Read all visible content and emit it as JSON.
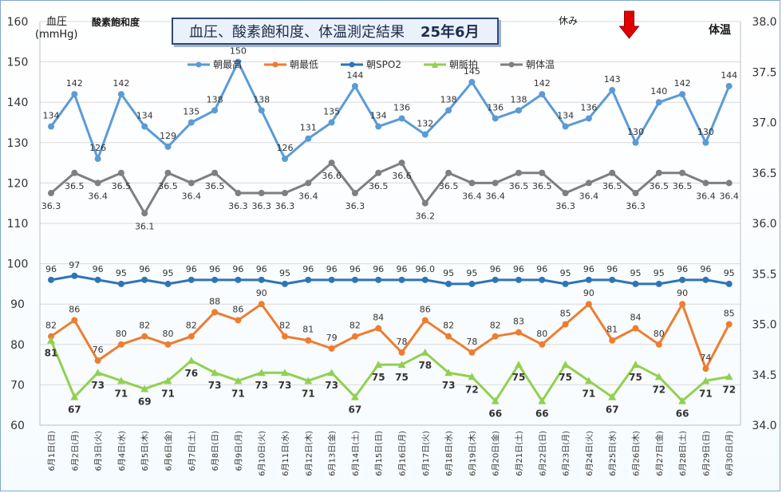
{
  "header": {
    "title": "血圧、酸素飽和度、体温測定結果",
    "month": "25年6月",
    "left_label_line1": "血圧",
    "left_label_line2": "(mmHg)",
    "spo2_label": "酸素飽和度",
    "rest_label": "休み",
    "right_label": "体温"
  },
  "colors": {
    "systolic": "#5b9bd5",
    "diastolic": "#ed7d31",
    "spo2": "#2e75b6",
    "pulse": "#92d050",
    "temp": "#7f7f7f",
    "arrow": "#e00000"
  },
  "chart_data": {
    "type": "line",
    "title": "血圧、酸素飽和度、体温測定結果 25年6月",
    "categories": [
      "6月1日(日)",
      "6月2日(月)",
      "6月3日(火)",
      "6月4日(水)",
      "6月5日(木)",
      "6月6日(金)",
      "6月7日(土)",
      "6月8日(日)",
      "6月9日(月)",
      "6月10日(火)",
      "6月11日(水)",
      "6月12日(木)",
      "6月13日(金)",
      "6月14日(土)",
      "6月15日(日)",
      "6月16日(月)",
      "6月17日(火)",
      "6月18日(水)",
      "6月19日(木)",
      "6月20日(金)",
      "6月21日(土)",
      "6月22日(日)",
      "6月23日(月)",
      "6月24日(火)",
      "6月25日(水)",
      "6月26日(木)",
      "6月27日(金)",
      "6月28日(土)",
      "6月29日(日)",
      "6月30日(月)"
    ],
    "left_axis": {
      "label": "血圧 (mmHg)",
      "min": 60,
      "max": 160,
      "step": 10
    },
    "right_axis": {
      "label": "体温",
      "min": 34.0,
      "max": 38.0,
      "step": 0.5
    },
    "rest_marker_index": 25,
    "series": [
      {
        "name": "朝最高",
        "axis": "left",
        "marker": "circle",
        "values": [
          134,
          142,
          126,
          142,
          134,
          129,
          135,
          138,
          150,
          138,
          126,
          131,
          135,
          144,
          134,
          136,
          132,
          138,
          145,
          136,
          138,
          142,
          134,
          136,
          143,
          130,
          140,
          142,
          130,
          144
        ],
        "labels": [
          "134",
          "142",
          "126",
          "142",
          "134",
          "129",
          "135",
          "138",
          "150",
          "138",
          "126",
          "131",
          "135",
          "144",
          "134",
          "136",
          "132",
          "138",
          "145",
          "136",
          "138",
          "142",
          "134",
          "136",
          "143",
          "130",
          "140",
          "142",
          "130",
          "144"
        ]
      },
      {
        "name": "朝最低",
        "axis": "left",
        "marker": "circle",
        "values": [
          82,
          86,
          76,
          80,
          82,
          80,
          82,
          88,
          86,
          90,
          82,
          81,
          79,
          82,
          84,
          78,
          86,
          82,
          78,
          82,
          83,
          80,
          85,
          90,
          81,
          84,
          80,
          90,
          74,
          85
        ],
        "labels": [
          "82",
          "86",
          "76",
          "80",
          "82",
          "80",
          "82",
          "88",
          "86",
          "90",
          "82",
          "81",
          "79",
          "82",
          "84",
          "78",
          "86",
          "82",
          "78",
          "82",
          "83",
          "80",
          "85",
          "90",
          "81",
          "84",
          "80",
          "90",
          "74",
          "85"
        ]
      },
      {
        "name": "朝SPO2",
        "axis": "left",
        "marker": "circle",
        "values": [
          96,
          97,
          96,
          95,
          96,
          95,
          96,
          96,
          96,
          96,
          95,
          96,
          96,
          96,
          96,
          96,
          96,
          95,
          95,
          96,
          96,
          96,
          95,
          96,
          96,
          95,
          95,
          96,
          96,
          95
        ],
        "labels": [
          "96",
          "97",
          "96",
          "95",
          "96",
          "95",
          "96",
          "96",
          "96",
          "96",
          "95",
          "96",
          "96",
          "96",
          "96",
          "96",
          "96.0",
          "95",
          "95",
          "96",
          "96",
          "96",
          "95",
          "96",
          "96",
          "95",
          "95",
          "96",
          "96",
          "95"
        ]
      },
      {
        "name": "朝脈拍",
        "axis": "left",
        "marker": "triangle",
        "values": [
          81,
          67,
          73,
          71,
          69,
          71,
          76,
          73,
          71,
          73,
          73,
          71,
          73,
          67,
          75,
          75,
          78,
          73,
          72,
          66,
          75,
          66,
          75,
          71,
          67,
          75,
          72,
          66,
          71,
          72
        ],
        "labels": [
          "81",
          "67",
          "73",
          "71",
          "69",
          "71",
          "76",
          "73",
          "71",
          "73",
          "73",
          "71",
          "73",
          "67",
          "75",
          "75",
          "78",
          "73",
          "72",
          "66",
          "75",
          "66",
          "75",
          "71",
          "67",
          "75",
          "72",
          "66",
          "71",
          "72"
        ]
      },
      {
        "name": "朝体温",
        "axis": "right",
        "marker": "circle",
        "values": [
          36.3,
          36.5,
          36.4,
          36.5,
          36.1,
          36.5,
          36.4,
          36.5,
          36.3,
          36.3,
          36.3,
          36.4,
          36.6,
          36.3,
          36.5,
          36.6,
          36.2,
          36.5,
          36.4,
          36.4,
          36.5,
          36.5,
          36.3,
          36.4,
          36.5,
          36.3,
          36.5,
          36.5,
          36.4,
          36.4
        ],
        "labels": [
          "36.3",
          "36.5",
          "36.4",
          "36.5",
          "36.1",
          "36.5",
          "36.4",
          "36.5",
          "36.3",
          "36.3",
          "36.3",
          "36.4",
          "36.6",
          "36.3",
          "36.5",
          "36.6",
          "36.2",
          "36.5",
          "36.4",
          "36.4",
          "36.5",
          "36.5",
          "36.3",
          "36.4",
          "36.5",
          "36.3",
          "36.5",
          "36.5",
          "36.4",
          "36.4"
        ]
      }
    ]
  }
}
